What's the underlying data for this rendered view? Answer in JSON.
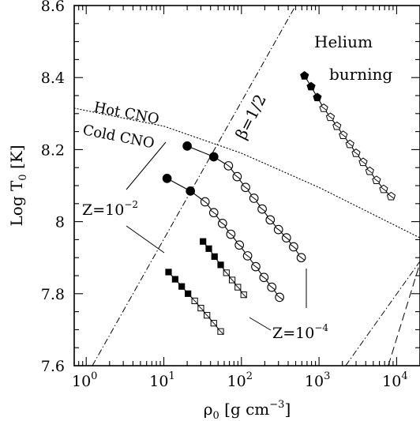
{
  "chart_data": {
    "type": "scatter",
    "title": "",
    "xlabel": {
      "main": "ρ",
      "sub": "0",
      "unit_pre": " [g cm",
      "unit_sup": "−3",
      "unit_post": "]"
    },
    "ylabel": {
      "main": "Log T",
      "sub": "0",
      "unit": " [K]"
    },
    "x_scale": "log",
    "xlim": [
      0.7,
      20000
    ],
    "ylim": [
      7.6,
      8.6
    ],
    "x_tick_labels": [
      {
        "value": 1,
        "base": "10",
        "exp": "0"
      },
      {
        "value": 10,
        "base": "10",
        "exp": "1"
      },
      {
        "value": 100,
        "base": "10",
        "exp": "2"
      },
      {
        "value": 1000,
        "base": "10",
        "exp": "3"
      },
      {
        "value": 10000,
        "base": "10",
        "exp": "4"
      }
    ],
    "y_tick_labels": [
      "7.6",
      "7.8",
      "8",
      "8.2",
      "8.4",
      "8.6"
    ],
    "series": [
      {
        "marker": "circle",
        "points": [
          {
            "x": 20,
            "y": 8.21,
            "filled": true
          },
          {
            "x": 44,
            "y": 8.18,
            "filled": true
          },
          {
            "x": 68,
            "y": 8.155,
            "filled": false
          },
          {
            "x": 88,
            "y": 8.125,
            "filled": false
          },
          {
            "x": 113,
            "y": 8.095,
            "filled": false
          },
          {
            "x": 145,
            "y": 8.065,
            "filled": false
          },
          {
            "x": 185,
            "y": 8.035,
            "filled": false
          },
          {
            "x": 235,
            "y": 8.005,
            "filled": false
          },
          {
            "x": 300,
            "y": 7.978,
            "filled": false
          },
          {
            "x": 380,
            "y": 7.955,
            "filled": false
          },
          {
            "x": 470,
            "y": 7.93,
            "filled": false
          },
          {
            "x": 590,
            "y": 7.9,
            "filled": false
          }
        ]
      },
      {
        "marker": "circle",
        "points": [
          {
            "x": 11,
            "y": 8.12,
            "filled": true
          },
          {
            "x": 22,
            "y": 8.085,
            "filled": true
          },
          {
            "x": 34,
            "y": 8.055,
            "filled": false
          },
          {
            "x": 44,
            "y": 8.025,
            "filled": false
          },
          {
            "x": 57,
            "y": 7.995,
            "filled": false
          },
          {
            "x": 73,
            "y": 7.965,
            "filled": false
          },
          {
            "x": 94,
            "y": 7.935,
            "filled": false
          },
          {
            "x": 120,
            "y": 7.905,
            "filled": false
          },
          {
            "x": 153,
            "y": 7.875,
            "filled": false
          },
          {
            "x": 195,
            "y": 7.845,
            "filled": false
          },
          {
            "x": 246,
            "y": 7.818,
            "filled": false
          },
          {
            "x": 310,
            "y": 7.79,
            "filled": false
          }
        ]
      },
      {
        "marker": "square",
        "points": [
          {
            "x": 32,
            "y": 7.945,
            "filled": true
          },
          {
            "x": 38,
            "y": 7.925,
            "filled": true
          },
          {
            "x": 45,
            "y": 7.903,
            "filled": true
          },
          {
            "x": 54,
            "y": 7.88,
            "filled": true
          },
          {
            "x": 64,
            "y": 7.858,
            "filled": false
          },
          {
            "x": 76,
            "y": 7.838,
            "filled": false
          },
          {
            "x": 90,
            "y": 7.818,
            "filled": false
          },
          {
            "x": 107,
            "y": 7.797,
            "filled": false
          }
        ]
      },
      {
        "marker": "square",
        "points": [
          {
            "x": 11.5,
            "y": 7.86,
            "filled": true
          },
          {
            "x": 14,
            "y": 7.84,
            "filled": true
          },
          {
            "x": 17,
            "y": 7.82,
            "filled": true
          },
          {
            "x": 20.5,
            "y": 7.8,
            "filled": true
          },
          {
            "x": 25,
            "y": 7.78,
            "filled": false
          },
          {
            "x": 30,
            "y": 7.76,
            "filled": false
          },
          {
            "x": 36,
            "y": 7.74,
            "filled": false
          },
          {
            "x": 44,
            "y": 7.718,
            "filled": false
          },
          {
            "x": 54,
            "y": 7.695,
            "filled": false
          }
        ]
      },
      {
        "marker": "pentagon",
        "points": [
          {
            "x": 650,
            "y": 8.405,
            "filled": true
          },
          {
            "x": 790,
            "y": 8.375,
            "filled": true
          },
          {
            "x": 950,
            "y": 8.345,
            "filled": true
          },
          {
            "x": 1150,
            "y": 8.315,
            "filled": false
          },
          {
            "x": 1400,
            "y": 8.29,
            "filled": false
          },
          {
            "x": 1700,
            "y": 8.265,
            "filled": false
          },
          {
            "x": 2050,
            "y": 8.24,
            "filled": false
          },
          {
            "x": 2500,
            "y": 8.215,
            "filled": false
          },
          {
            "x": 3000,
            "y": 8.19,
            "filled": false
          },
          {
            "x": 3700,
            "y": 8.165,
            "filled": false
          },
          {
            "x": 4500,
            "y": 8.14,
            "filled": false
          },
          {
            "x": 5500,
            "y": 8.115,
            "filled": false
          },
          {
            "x": 6800,
            "y": 8.09,
            "filled": false
          },
          {
            "x": 8500,
            "y": 8.07,
            "filled": false
          }
        ]
      }
    ],
    "lines": [
      {
        "style": "dotted",
        "points": [
          [
            0.7,
            8.315
          ],
          [
            10,
            8.265
          ],
          [
            100,
            8.19
          ],
          [
            1000,
            8.095
          ],
          [
            20000,
            7.955
          ]
        ]
      },
      {
        "style": "dash-dot",
        "points": [
          [
            1.2,
            7.6
          ],
          [
            500,
            8.6
          ]
        ]
      },
      {
        "style": "dash-dot",
        "points": [
          [
            2200,
            7.6
          ],
          [
            20000,
            7.89
          ]
        ]
      },
      {
        "style": "dashed",
        "points": [
          [
            7800,
            7.6
          ],
          [
            20000,
            7.885
          ]
        ]
      }
    ],
    "annotations": [
      {
        "id": "helium-1",
        "text": "Helium"
      },
      {
        "id": "helium-2",
        "text": "burning"
      },
      {
        "id": "hot-cno",
        "text": "Hot CNO"
      },
      {
        "id": "cold-cno",
        "text": "Cold CNO"
      },
      {
        "id": "beta",
        "text": "β=1/2"
      },
      {
        "id": "z2",
        "base": "Z=10",
        "exp": "−2"
      },
      {
        "id": "z4",
        "base": "Z=10",
        "exp": "−4"
      }
    ]
  }
}
